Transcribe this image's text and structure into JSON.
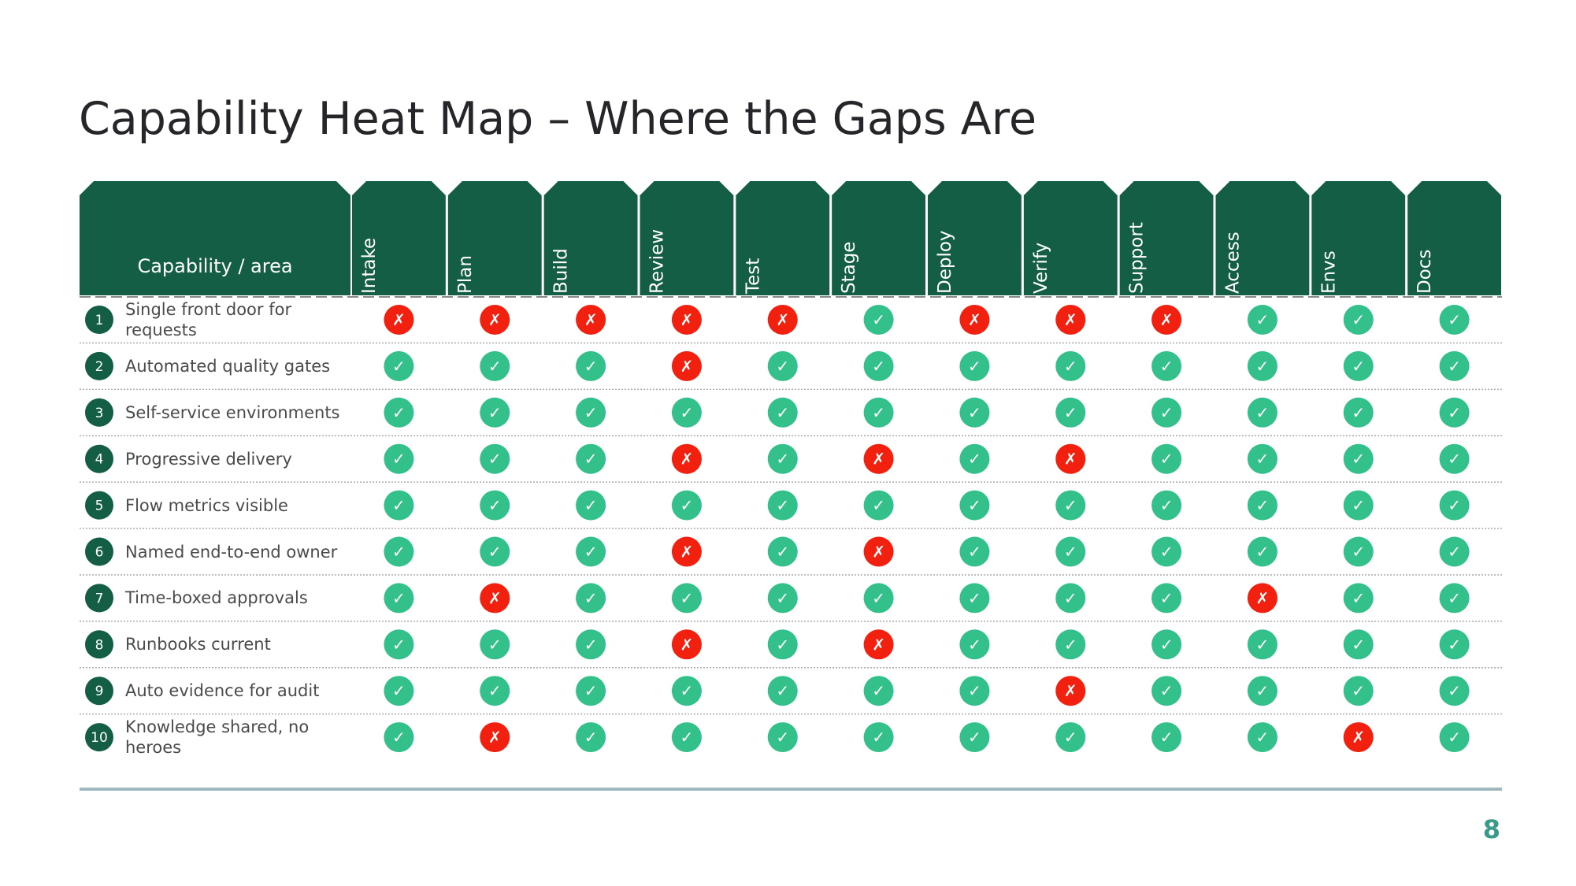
{
  "title": "Capability Heat Map – Where the Gaps Are",
  "table": {
    "header_label": "Capability / area",
    "header_color": "#135e45",
    "mark_colors": {
      "✓": "#33c08b",
      "✗": "#f2200f"
    },
    "columns": [
      "Intake",
      "Plan",
      "Build",
      "Review",
      "Test",
      "Stage",
      "Deploy",
      "Verify",
      "Support",
      "Access",
      "Envs",
      "Docs"
    ],
    "rows": [
      {
        "number": 1,
        "label": "Single front door for requests",
        "cells": [
          "✗",
          "✗",
          "✗",
          "✗",
          "✗",
          "✓",
          "✗",
          "✗",
          "✗",
          "✓",
          "✓",
          "✓"
        ]
      },
      {
        "number": 2,
        "label": "Automated quality gates",
        "cells": [
          "✓",
          "✓",
          "✓",
          "✗",
          "✓",
          "✓",
          "✓",
          "✓",
          "✓",
          "✓",
          "✓",
          "✓"
        ]
      },
      {
        "number": 3,
        "label": "Self-service environments",
        "cells": [
          "✓",
          "✓",
          "✓",
          "✓",
          "✓",
          "✓",
          "✓",
          "✓",
          "✓",
          "✓",
          "✓",
          "✓"
        ]
      },
      {
        "number": 4,
        "label": "Progressive delivery",
        "cells": [
          "✓",
          "✓",
          "✓",
          "✗",
          "✓",
          "✗",
          "✓",
          "✗",
          "✓",
          "✓",
          "✓",
          "✓"
        ]
      },
      {
        "number": 5,
        "label": "Flow metrics visible",
        "cells": [
          "✓",
          "✓",
          "✓",
          "✓",
          "✓",
          "✓",
          "✓",
          "✓",
          "✓",
          "✓",
          "✓",
          "✓"
        ]
      },
      {
        "number": 6,
        "label": "Named end-to-end owner",
        "cells": [
          "✓",
          "✓",
          "✓",
          "✗",
          "✓",
          "✗",
          "✓",
          "✓",
          "✓",
          "✓",
          "✓",
          "✓"
        ]
      },
      {
        "number": 7,
        "label": "Time-boxed approvals",
        "cells": [
          "✓",
          "✗",
          "✓",
          "✓",
          "✓",
          "✓",
          "✓",
          "✓",
          "✓",
          "✗",
          "✓",
          "✓"
        ]
      },
      {
        "number": 8,
        "label": "Runbooks current",
        "cells": [
          "✓",
          "✓",
          "✓",
          "✗",
          "✓",
          "✗",
          "✓",
          "✓",
          "✓",
          "✓",
          "✓",
          "✓"
        ]
      },
      {
        "number": 9,
        "label": "Auto evidence for audit",
        "cells": [
          "✓",
          "✓",
          "✓",
          "✓",
          "✓",
          "✓",
          "✓",
          "✗",
          "✓",
          "✓",
          "✓",
          "✓"
        ]
      },
      {
        "number": 10,
        "label": "Knowledge shared, no heroes",
        "cells": [
          "✓",
          "✗",
          "✓",
          "✓",
          "✓",
          "✓",
          "✓",
          "✓",
          "✓",
          "✓",
          "✗",
          "✓"
        ]
      }
    ]
  },
  "page_number": 8
}
